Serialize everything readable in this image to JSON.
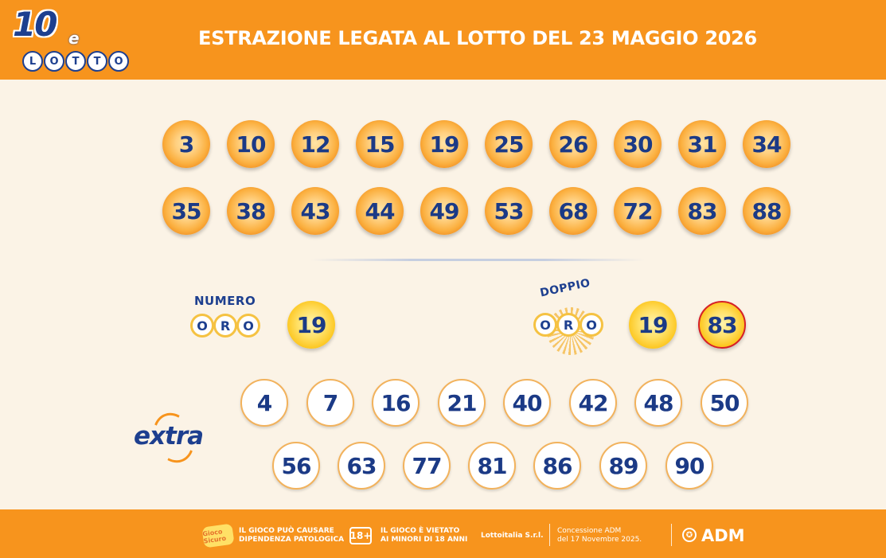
{
  "header": {
    "logo_main": "10",
    "logo_e": "e",
    "logo_letters": [
      "L",
      "O",
      "T",
      "T",
      "O"
    ],
    "title": "ESTRAZIONE LEGATA AL LOTTO DEL 23 MAGGIO 2026"
  },
  "colors": {
    "brand_orange": "#f7941d",
    "navy": "#1d3f8f",
    "background": "#fbf3e6",
    "doppio_oro_ring": "#d62027"
  },
  "main_numbers": {
    "row1": [
      "3",
      "10",
      "12",
      "15",
      "19",
      "25",
      "26",
      "30",
      "31",
      "34"
    ],
    "row2": [
      "35",
      "38",
      "43",
      "44",
      "49",
      "53",
      "68",
      "72",
      "83",
      "88"
    ]
  },
  "numero_oro": {
    "label": "NUMERO",
    "oro_letters": [
      "O",
      "R",
      "O"
    ],
    "value": "19"
  },
  "doppio_oro": {
    "label": "DOPPIO",
    "oro_letters": [
      "O",
      "R",
      "O"
    ],
    "values": [
      "19",
      "83"
    ]
  },
  "extra": {
    "logo_text": "extra",
    "row1": [
      "4",
      "7",
      "16",
      "21",
      "40",
      "42",
      "48",
      "50"
    ],
    "row2": [
      "56",
      "63",
      "77",
      "81",
      "86",
      "89",
      "90"
    ]
  },
  "footer": {
    "gioco_badge": "Gioco Sicuro",
    "dipendenza_text": [
      "IL GIOCO PUÒ CAUSARE",
      "DIPENDENZA PATOLOGICA"
    ],
    "age_badge": "18+",
    "minori_text": [
      "IL GIOCO È VIETATO",
      "AI MINORI DI 18 ANNI"
    ],
    "operator": "Lottoitalia S.r.l.",
    "concessione": [
      "Concessione ADM",
      "del 17 Novembre 2025."
    ],
    "adm_icon": "emblem-icon",
    "adm_label": "ADM"
  }
}
